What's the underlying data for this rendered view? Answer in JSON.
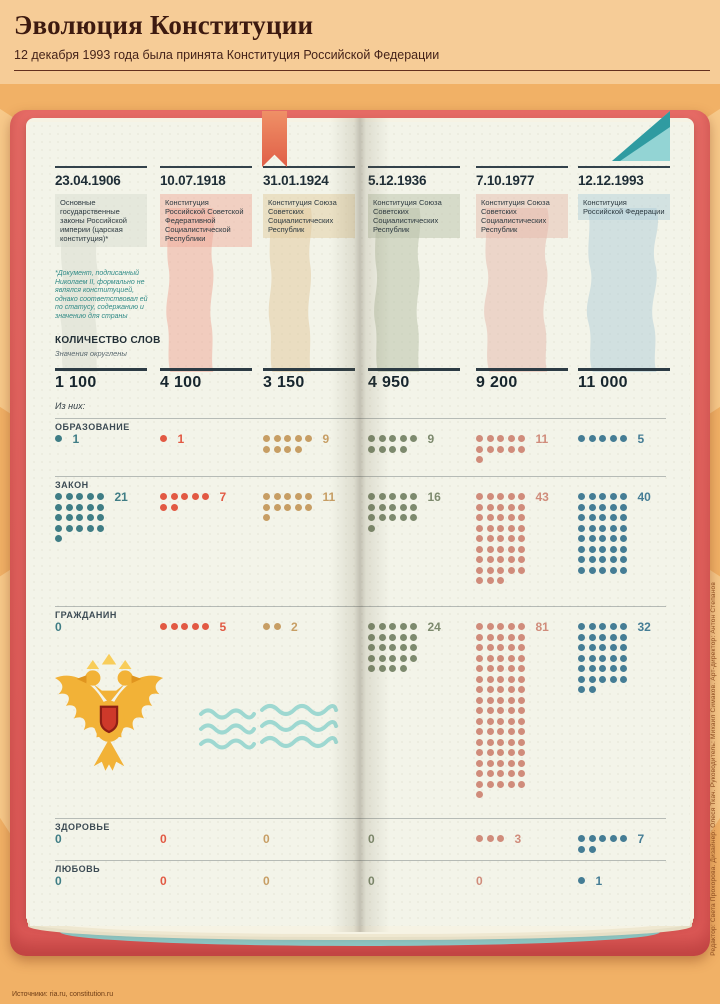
{
  "header": {
    "title": "Эволюция Конституции",
    "subtitle": "12 декабря 1993 года была принята Конституция Российской Федерации"
  },
  "columns": [
    {
      "date": "23.04.1906",
      "desc": "Основные государственные законы Российской империи (царская конституция)*",
      "words": "1 100",
      "color": "#3f7d85",
      "ribbon": "#d8dcd0",
      "ribbon_width": 46
    },
    {
      "date": "10.07.1918",
      "desc": "Конституция Российской Советской Федеративной Социалистической Республики",
      "words": "4 100",
      "color": "#e25943",
      "ribbon": "#efab9b",
      "ribbon_width": 58
    },
    {
      "date": "31.01.1924",
      "desc": "Конституция Союза Советских Социалистических Республик",
      "words": "3 150",
      "color": "#c79e64",
      "ribbon": "#e2cba0",
      "ribbon_width": 52
    },
    {
      "date": "5.12.1936",
      "desc": "Конституция Союза Советских Социалистических Республик",
      "words": "4 950",
      "color": "#7d8a6e",
      "ribbon": "#bac2a9",
      "ribbon_width": 56
    },
    {
      "date": "7.10.1977",
      "desc": "Конституция Союза Советских Социалистических Республик",
      "words": "9 200",
      "color": "#d08c7b",
      "ribbon": "#e6bcae",
      "ribbon_width": 78
    },
    {
      "date": "12.12.1993",
      "desc": "Конституция Российской Федерации",
      "words": "11 000",
      "color": "#457d95",
      "ribbon": "#b4d0d9",
      "ribbon_width": 86
    }
  ],
  "footnote": "*Документ, подписанный Николаем II, формально не являлся конституцией, однако соответствовал ей по статусу, содержанию и значению для страны",
  "words_section": {
    "title": "КОЛИЧЕСТВО СЛОВ",
    "note": "Значения округлены",
    "of_them": "Из них:"
  },
  "chart_data": {
    "type": "table",
    "title": "Эволюция Конституции",
    "subtitle": "12 декабря 1993 года была принята Конституция Российской Федерации",
    "columns": [
      "23.04.1906",
      "10.07.1918",
      "31.01.1924",
      "5.12.1936",
      "7.10.1977",
      "12.12.1993"
    ],
    "word_counts": {
      "label": "КОЛИЧЕСТВО СЛОВ",
      "values": [
        1100,
        4100,
        3150,
        4950,
        9200,
        11000
      ]
    },
    "rows": [
      {
        "label": "ОБРАЗОВАНИЕ",
        "values": [
          1,
          1,
          9,
          9,
          11,
          5
        ]
      },
      {
        "label": "ЗАКОН",
        "values": [
          21,
          7,
          11,
          16,
          43,
          40
        ]
      },
      {
        "label": "ГРАЖДАНИН",
        "values": [
          0,
          5,
          2,
          24,
          81,
          32
        ]
      },
      {
        "label": "ЗДОРОВЬЕ",
        "values": [
          0,
          0,
          0,
          0,
          3,
          7
        ]
      },
      {
        "label": "ЛЮБОВЬ",
        "values": [
          0,
          0,
          0,
          0,
          0,
          1
        ]
      }
    ]
  },
  "credits": {
    "sources": "Источники: ria.ru, constitution.ru",
    "team": "Редактор: Света Прохорова. Дизайнер: Олеся Ткач. Руководитель: Михаил Симаков. Арт-директор: Антон Степанов"
  }
}
